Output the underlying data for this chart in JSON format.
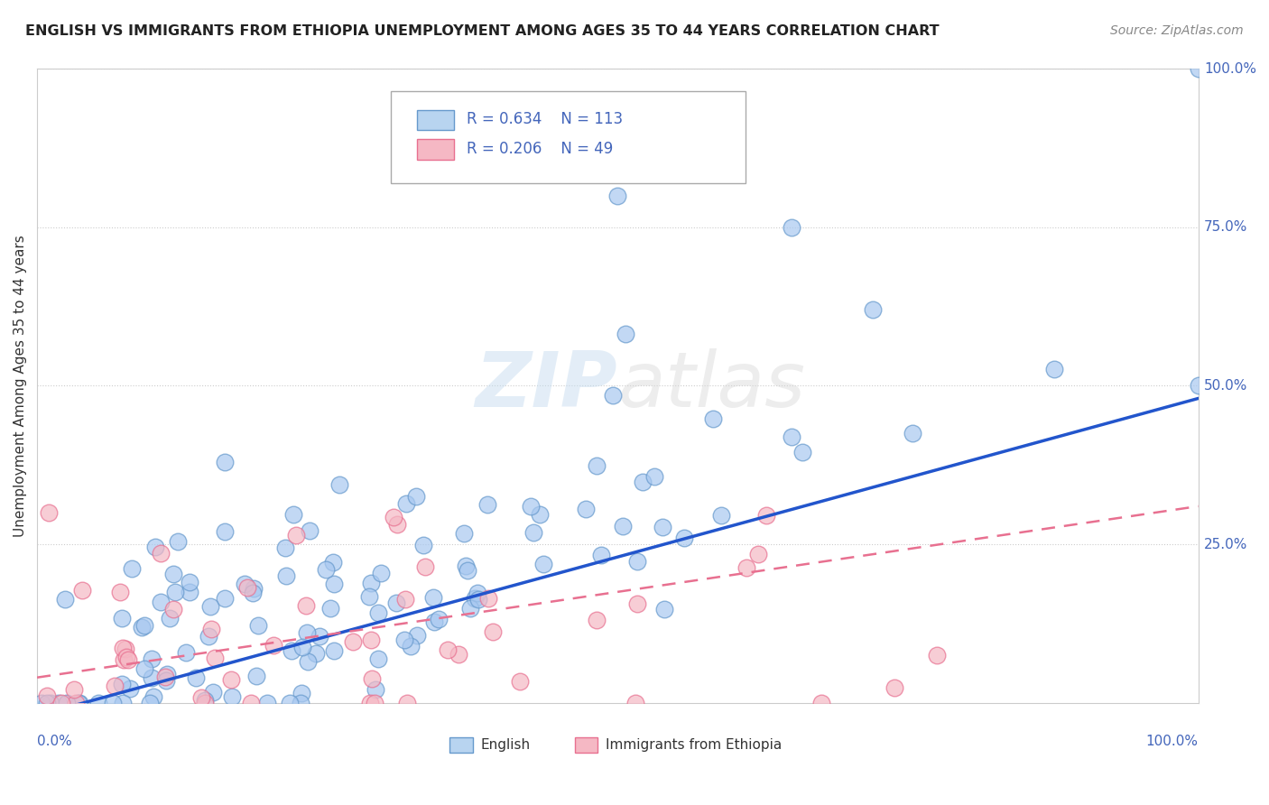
{
  "title": "ENGLISH VS IMMIGRANTS FROM ETHIOPIA UNEMPLOYMENT AMONG AGES 35 TO 44 YEARS CORRELATION CHART",
  "source": "Source: ZipAtlas.com",
  "ylabel": "Unemployment Among Ages 35 to 44 years",
  "english_R": "0.634",
  "english_N": "113",
  "ethiopia_R": "0.206",
  "ethiopia_N": "49",
  "english_color": "#a8c8f0",
  "english_edge_color": "#6699cc",
  "ethiopia_color": "#f5b8c4",
  "ethiopia_edge_color": "#e87090",
  "trendline_english_color": "#2255cc",
  "trendline_ethiopia_color": "#e87090",
  "legend_box_english": "#b8d4f0",
  "legend_box_ethiopia": "#f5b8c4",
  "label_color": "#4466bb",
  "grid_color": "#cccccc",
  "watermark_zip": "ZIP",
  "watermark_atlas": "atlas",
  "slope_eng": 0.5,
  "intercept_eng": -0.02,
  "slope_eth": 0.27,
  "intercept_eth": 0.04
}
